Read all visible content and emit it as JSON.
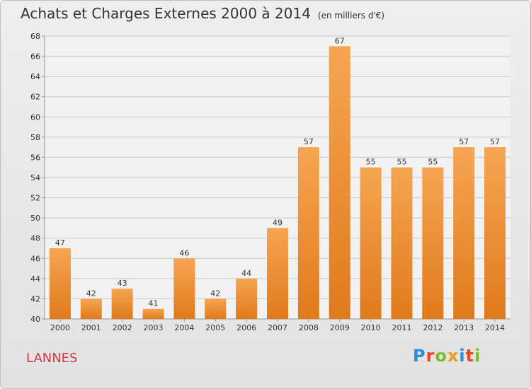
{
  "title": "Achats et Charges Externes 2000 à 2014",
  "unit": "(en milliers d'€)",
  "commune": "LANNES",
  "logo": "Proxiti",
  "colors": {
    "bar_top": "#f6a552",
    "bar_bottom": "#e07a1c",
    "grid": "#c9c9c9",
    "axis_text": "#333333",
    "commune": "#d03a4a"
  },
  "chart_data": {
    "type": "bar",
    "title": "Achats et Charges Externes 2000 à 2014",
    "subtitle": "(en milliers d'€)",
    "categories": [
      "2000",
      "2001",
      "2002",
      "2003",
      "2004",
      "2005",
      "2006",
      "2007",
      "2008",
      "2009",
      "2010",
      "2011",
      "2012",
      "2013",
      "2014"
    ],
    "values": [
      47,
      42,
      43,
      41,
      46,
      42,
      44,
      49,
      57,
      67,
      55,
      55,
      55,
      57,
      57
    ],
    "ylim": [
      40,
      68
    ],
    "yticks": [
      40,
      42,
      44,
      46,
      48,
      50,
      52,
      54,
      56,
      58,
      60,
      62,
      64,
      66,
      68
    ],
    "grid": true,
    "xlabel": "",
    "ylabel": ""
  }
}
